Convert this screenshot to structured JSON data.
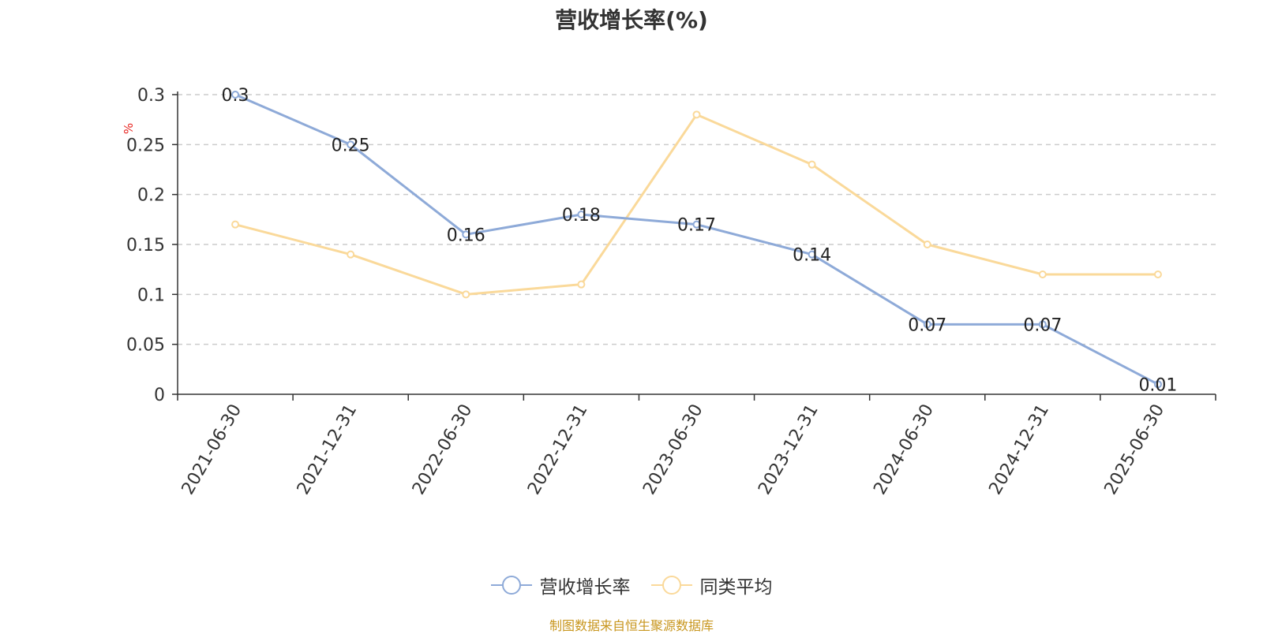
{
  "chart_data": {
    "type": "line",
    "title": "营收增长率(%)",
    "ylabel": "%",
    "xlabel": "",
    "categories": [
      "2021-06-30",
      "2021-12-31",
      "2022-06-30",
      "2022-12-31",
      "2023-06-30",
      "2023-12-31",
      "2024-06-30",
      "2024-12-31",
      "2025-06-30"
    ],
    "series": [
      {
        "name": "营收增长率",
        "values": [
          0.3,
          0.25,
          0.16,
          0.18,
          0.17,
          0.14,
          0.07,
          0.07,
          0.01
        ],
        "color": "#8eaad8",
        "data_labels": true
      },
      {
        "name": "同类平均",
        "values": [
          0.17,
          0.14,
          0.1,
          0.11,
          0.28,
          0.23,
          0.15,
          0.12,
          0.12
        ],
        "color": "#fad99a",
        "data_labels": false
      }
    ],
    "ylim": [
      0,
      0.3
    ],
    "yticks": [
      "0",
      "0.05",
      "0.1",
      "0.15",
      "0.2",
      "0.25",
      "0.3"
    ],
    "grid": true,
    "legend": "bottom-center"
  },
  "footer": "制图数据来自恒生聚源数据库"
}
